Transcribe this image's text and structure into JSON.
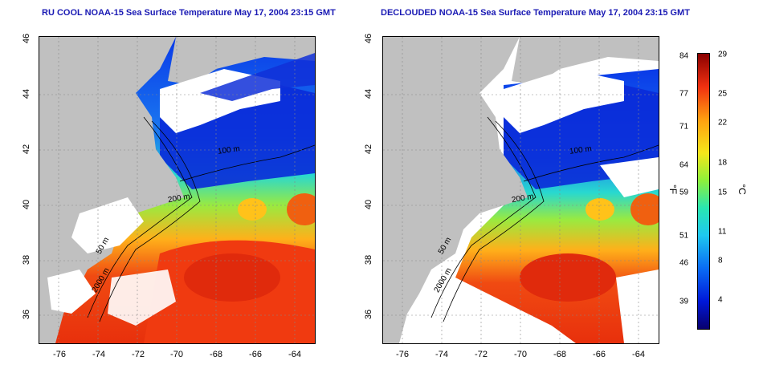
{
  "left": {
    "title": "RU COOL NOAA-15 Sea Surface Temperature May 17, 2004 23:15 GMT"
  },
  "right": {
    "title": "DECLOUDED NOAA-15 Sea Surface Temperature May 17, 2004 23:15 GMT"
  },
  "axes": {
    "x_ticks": [
      "-76",
      "-74",
      "-72",
      "-70",
      "-68",
      "-66",
      "-64"
    ],
    "y_ticks": [
      "36",
      "38",
      "40",
      "42",
      "44",
      "46"
    ]
  },
  "contours": {
    "c1": "200 m",
    "c2": "100 m",
    "c3": "50 m",
    "c4": "2000 m"
  },
  "colorbar": {
    "fahrenheit": [
      "84",
      "77",
      "71",
      "64",
      "59",
      "51",
      "46",
      "39"
    ],
    "celsius": [
      "29",
      "25",
      "22",
      "18",
      "15",
      "11",
      "8",
      "4"
    ],
    "f_unit": "°F",
    "c_unit": "°C"
  },
  "colors": {
    "land": "#c0c0c0",
    "cloud": "#ffffff",
    "title": "#1a1ab4"
  }
}
